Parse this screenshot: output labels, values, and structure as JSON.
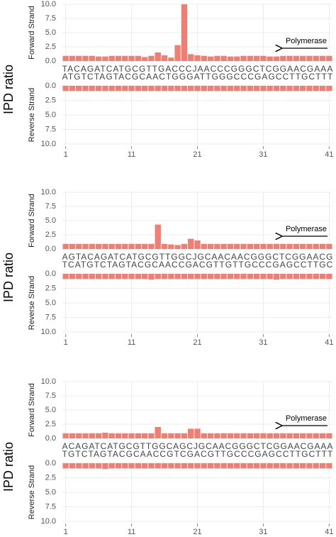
{
  "chart_data": [
    {
      "type": "bar",
      "ylabel": "IPD ratio",
      "annotation": "Polymerase",
      "x": [
        1,
        2,
        3,
        4,
        5,
        6,
        7,
        8,
        9,
        10,
        11,
        12,
        13,
        14,
        15,
        16,
        17,
        18,
        19,
        20,
        21,
        22,
        23,
        24,
        25,
        26,
        27,
        28,
        29,
        30,
        31,
        32,
        33,
        34,
        35,
        36,
        37,
        38,
        39,
        40,
        41
      ],
      "xlim": [
        0.5,
        41.5
      ],
      "xticks": [
        1,
        11,
        21,
        31,
        41
      ],
      "ylim": [
        0,
        10
      ],
      "yticks": [
        {
          "value": 0,
          "label": "0.0"
        },
        {
          "value": 2.5,
          "label": "2.5"
        },
        {
          "value": 5,
          "label": "5.0"
        },
        {
          "value": 7.5,
          "label": "7.5"
        },
        {
          "value": 10,
          "label": "10.0"
        }
      ],
      "grid": true,
      "series": [
        {
          "name": "Forward Strand",
          "color": "#f07f73",
          "sequence": "TACAGATCATGCGTTGACCCJAACCCGGGCTCGGAACGAAA",
          "values": [
            0.9,
            0.9,
            0.9,
            0.9,
            0.9,
            0.8,
            0.8,
            0.9,
            0.9,
            0.9,
            0.9,
            0.9,
            0.7,
            0.9,
            1.5,
            1.0,
            0.6,
            2.8,
            10.0,
            1.2,
            1.0,
            0.9,
            0.8,
            0.9,
            0.9,
            0.8,
            0.8,
            0.9,
            0.9,
            0.9,
            0.9,
            0.8,
            0.8,
            0.9,
            0.9,
            0.9,
            0.9,
            0.9,
            0.9,
            0.9,
            0.9
          ]
        },
        {
          "name": "Reverse Strand",
          "color": "#f07f73",
          "sequence": "ATGTCTAGTACGCAACTGGGATTGGGCCCGAGCCTTGCTTT",
          "values": [
            0.9,
            0.9,
            0.9,
            0.9,
            0.9,
            0.9,
            0.9,
            0.9,
            0.9,
            0.9,
            0.9,
            0.9,
            0.9,
            0.9,
            0.9,
            0.9,
            0.9,
            0.9,
            0.9,
            0.9,
            0.9,
            0.9,
            0.9,
            0.9,
            0.9,
            0.9,
            0.9,
            0.9,
            0.9,
            0.9,
            0.9,
            0.9,
            0.9,
            0.9,
            0.9,
            0.9,
            0.9,
            0.9,
            0.9,
            0.9,
            0.9
          ]
        }
      ]
    },
    {
      "type": "bar",
      "ylabel": "IPD ratio",
      "annotation": "Polymerase",
      "x": [
        1,
        2,
        3,
        4,
        5,
        6,
        7,
        8,
        9,
        10,
        11,
        12,
        13,
        14,
        15,
        16,
        17,
        18,
        19,
        20,
        21,
        22,
        23,
        24,
        25,
        26,
        27,
        28,
        29,
        30,
        31,
        32,
        33,
        34,
        35,
        36,
        37,
        38,
        39,
        40,
        41
      ],
      "xlim": [
        0.5,
        41.5
      ],
      "xticks": [
        1,
        11,
        21,
        31,
        41
      ],
      "ylim": [
        0,
        10
      ],
      "yticks": [
        {
          "value": 0,
          "label": "0.0"
        },
        {
          "value": 2.5,
          "label": "2.5"
        },
        {
          "value": 5,
          "label": "5.0"
        },
        {
          "value": 7.5,
          "label": "7.5"
        },
        {
          "value": 10,
          "label": "10.0"
        }
      ],
      "grid": true,
      "series": [
        {
          "name": "Forward Strand",
          "color": "#f07f73",
          "sequence": "AGTACAGATCATGCGTTGGCJGCAACAACGGGCTCGGAACG",
          "values": [
            0.9,
            0.9,
            0.9,
            0.9,
            0.9,
            0.9,
            0.9,
            0.9,
            0.9,
            0.9,
            0.9,
            0.9,
            0.9,
            0.9,
            4.3,
            0.9,
            0.8,
            0.7,
            0.9,
            1.8,
            1.5,
            0.9,
            0.9,
            0.9,
            0.9,
            0.9,
            0.9,
            0.9,
            0.9,
            0.9,
            0.9,
            0.9,
            0.9,
            0.9,
            0.9,
            0.9,
            0.9,
            0.9,
            0.9,
            0.9,
            0.9
          ]
        },
        {
          "name": "Reverse Strand",
          "color": "#f07f73",
          "sequence": "TCATGTCTAGTACGCAACCGACGTTGTTGCCCGAGCCTTGC",
          "values": [
            0.9,
            0.9,
            0.9,
            0.9,
            0.9,
            0.9,
            0.9,
            0.9,
            0.9,
            0.9,
            0.9,
            0.9,
            0.9,
            1.0,
            0.9,
            0.9,
            0.9,
            0.9,
            0.9,
            0.9,
            0.9,
            0.9,
            0.9,
            0.9,
            0.9,
            0.9,
            0.9,
            0.9,
            0.9,
            0.9,
            0.9,
            0.9,
            1.0,
            0.9,
            0.9,
            0.9,
            0.9,
            0.9,
            0.9,
            0.9,
            0.9
          ]
        }
      ]
    },
    {
      "type": "bar",
      "ylabel": "IPD ratio",
      "annotation": "Polymerase",
      "x": [
        1,
        2,
        3,
        4,
        5,
        6,
        7,
        8,
        9,
        10,
        11,
        12,
        13,
        14,
        15,
        16,
        17,
        18,
        19,
        20,
        21,
        22,
        23,
        24,
        25,
        26,
        27,
        28,
        29,
        30,
        31,
        32,
        33,
        34,
        35,
        36,
        37,
        38,
        39,
        40,
        41
      ],
      "xlim": [
        0.5,
        41.5
      ],
      "xticks": [
        1,
        11,
        21,
        31,
        41
      ],
      "ylim": [
        0,
        10
      ],
      "yticks": [
        {
          "value": 0,
          "label": "0.0"
        },
        {
          "value": 2.5,
          "label": "2.5"
        },
        {
          "value": 5,
          "label": "5.0"
        },
        {
          "value": 7.5,
          "label": "7.5"
        },
        {
          "value": 10,
          "label": "10.0"
        }
      ],
      "grid": true,
      "series": [
        {
          "name": "Forward Strand",
          "color": "#f07f73",
          "sequence": "ACAGATCATGCGTTGGCAGCJGCAACGGGCTCGGAACGAAA",
          "values": [
            0.9,
            0.9,
            0.9,
            0.9,
            0.9,
            0.9,
            1.0,
            0.9,
            0.9,
            0.9,
            0.9,
            0.9,
            0.9,
            0.9,
            2.0,
            0.9,
            0.9,
            0.9,
            0.9,
            1.7,
            1.7,
            0.9,
            0.9,
            0.9,
            0.9,
            0.9,
            0.9,
            0.9,
            0.9,
            0.9,
            0.9,
            0.9,
            0.9,
            0.9,
            0.9,
            0.9,
            0.9,
            0.9,
            0.9,
            0.9,
            0.9
          ]
        },
        {
          "name": "Reverse Strand",
          "color": "#f07f73",
          "sequence": "TGTCTAGTACGCAACCGTCGACGTTGCCCGAGCCTTGCTTT",
          "values": [
            0.9,
            0.9,
            0.9,
            0.9,
            0.9,
            0.9,
            1.0,
            0.9,
            0.9,
            0.9,
            0.9,
            0.9,
            0.9,
            0.9,
            0.9,
            0.9,
            0.9,
            0.9,
            0.9,
            0.9,
            0.9,
            0.9,
            0.9,
            0.9,
            0.9,
            0.9,
            0.9,
            0.9,
            0.9,
            0.9,
            0.9,
            0.9,
            0.9,
            0.9,
            0.9,
            0.9,
            0.9,
            0.9,
            0.9,
            0.9,
            0.9
          ]
        }
      ]
    }
  ]
}
